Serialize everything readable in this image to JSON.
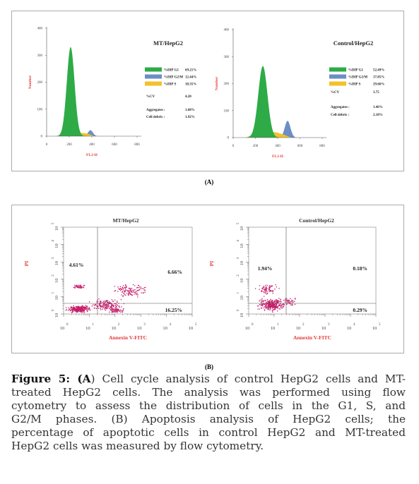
{
  "panel_a": {
    "label": "(A)",
    "charts": [
      {
        "title": "MT/HepG2",
        "y_axis_label": "Number",
        "x_axis_label": "FL2-H",
        "yticks": [
          "0",
          "100",
          "200",
          "300",
          "400"
        ],
        "xticks": [
          "0",
          "200",
          "400",
          "600",
          "800"
        ],
        "legend": [
          {
            "name": "%DIP G1",
            "value": "69.21%"
          },
          {
            "name": "%DIP G2/M",
            "value": "12.44%"
          },
          {
            "name": "%DIP S",
            "value": "18.35%"
          }
        ],
        "stats": [
          {
            "name": "%CV",
            "value": "4.20"
          },
          {
            "name": "Aggregates :",
            "value": "1.68%"
          },
          {
            "name": "Cell debris :",
            "value": "1.92%"
          }
        ]
      },
      {
        "title": "Control/HepG2",
        "y_axis_label": "Number",
        "x_axis_label": "FL2-H",
        "yticks": [
          "0",
          "100",
          "200",
          "300",
          "400"
        ],
        "xticks": [
          "0",
          "200",
          "400",
          "600",
          "800"
        ],
        "legend": [
          {
            "name": "%DIP G1",
            "value": "52.49%"
          },
          {
            "name": "%DIP G2/M",
            "value": "17.85%"
          },
          {
            "name": "%DIP S",
            "value": "29.66%"
          }
        ],
        "stats": [
          {
            "name": "%CV",
            "value": "3.75"
          },
          {
            "name": "Aggregates :",
            "value": "1.46%"
          },
          {
            "name": "Cell debris :",
            "value": "2.18%"
          }
        ]
      }
    ]
  },
  "panel_b": {
    "label": "(B)",
    "plots": [
      {
        "title": "MT/HepG2",
        "y_axis_label": "PI",
        "x_axis_label": "Annexin V-FITC",
        "ticks": [
          {
            "base": "10",
            "exp": "0"
          },
          {
            "base": "10",
            "exp": "1"
          },
          {
            "base": "10",
            "exp": "2"
          },
          {
            "base": "10",
            "exp": "3"
          },
          {
            "base": "10",
            "exp": "4"
          },
          {
            "base": "10",
            "exp": "5"
          }
        ],
        "quadrants": {
          "upper_left": "4.61%",
          "upper_right": "6.66%",
          "lower_right": "16.25%"
        }
      },
      {
        "title": "Control/HepG2",
        "y_axis_label": "PI",
        "x_axis_label": "Annexin V-FITC",
        "ticks": [
          {
            "base": "10",
            "exp": "0"
          },
          {
            "base": "10",
            "exp": "1"
          },
          {
            "base": "10",
            "exp": "2"
          },
          {
            "base": "10",
            "exp": "3"
          },
          {
            "base": "10",
            "exp": "4"
          },
          {
            "base": "10",
            "exp": "5"
          }
        ],
        "quadrants": {
          "upper_left": "1.94%",
          "upper_right": "0.18%",
          "lower_right": "0.29%"
        }
      }
    ]
  },
  "caption": {
    "label": "Figure 5: (A",
    "lines": [
      ") Cell cycle analysis of control HepG2 cells and MT-",
      "treated HepG2 cells. The analysis was performed using flow",
      "cytometry to assess the distribution of cells in the G1, S, and",
      "G2/M phases. (B) Apoptosis analysis of HepG2 cells; the",
      "percentage of apoptotic cells in control HepG2 and MT-treated",
      "HepG2 cells was measured by flow cytometry."
    ]
  }
}
